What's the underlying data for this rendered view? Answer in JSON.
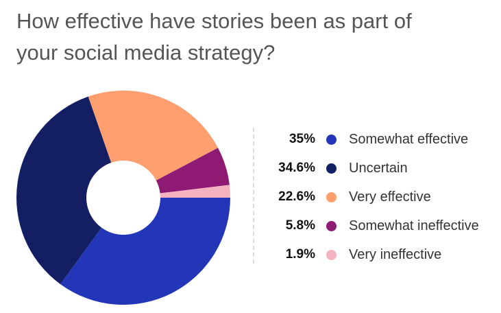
{
  "chart_data": {
    "type": "pie",
    "title": "How effective have stories been as part of your social media strategy?",
    "donut": true,
    "legend_position": "right",
    "categories": [
      "Somewhat effective",
      "Uncertain",
      "Very effective",
      "Somewhat ineffective",
      "Very ineffective"
    ],
    "values": [
      35,
      34.6,
      22.6,
      5.8,
      1.9
    ],
    "value_labels": [
      "35%",
      "34.6%",
      "22.6%",
      "5.8%",
      "1.9%"
    ],
    "colors": [
      "#2336b8",
      "#141e62",
      "#ff9e6e",
      "#8e1a74",
      "#f5b3c1"
    ]
  }
}
